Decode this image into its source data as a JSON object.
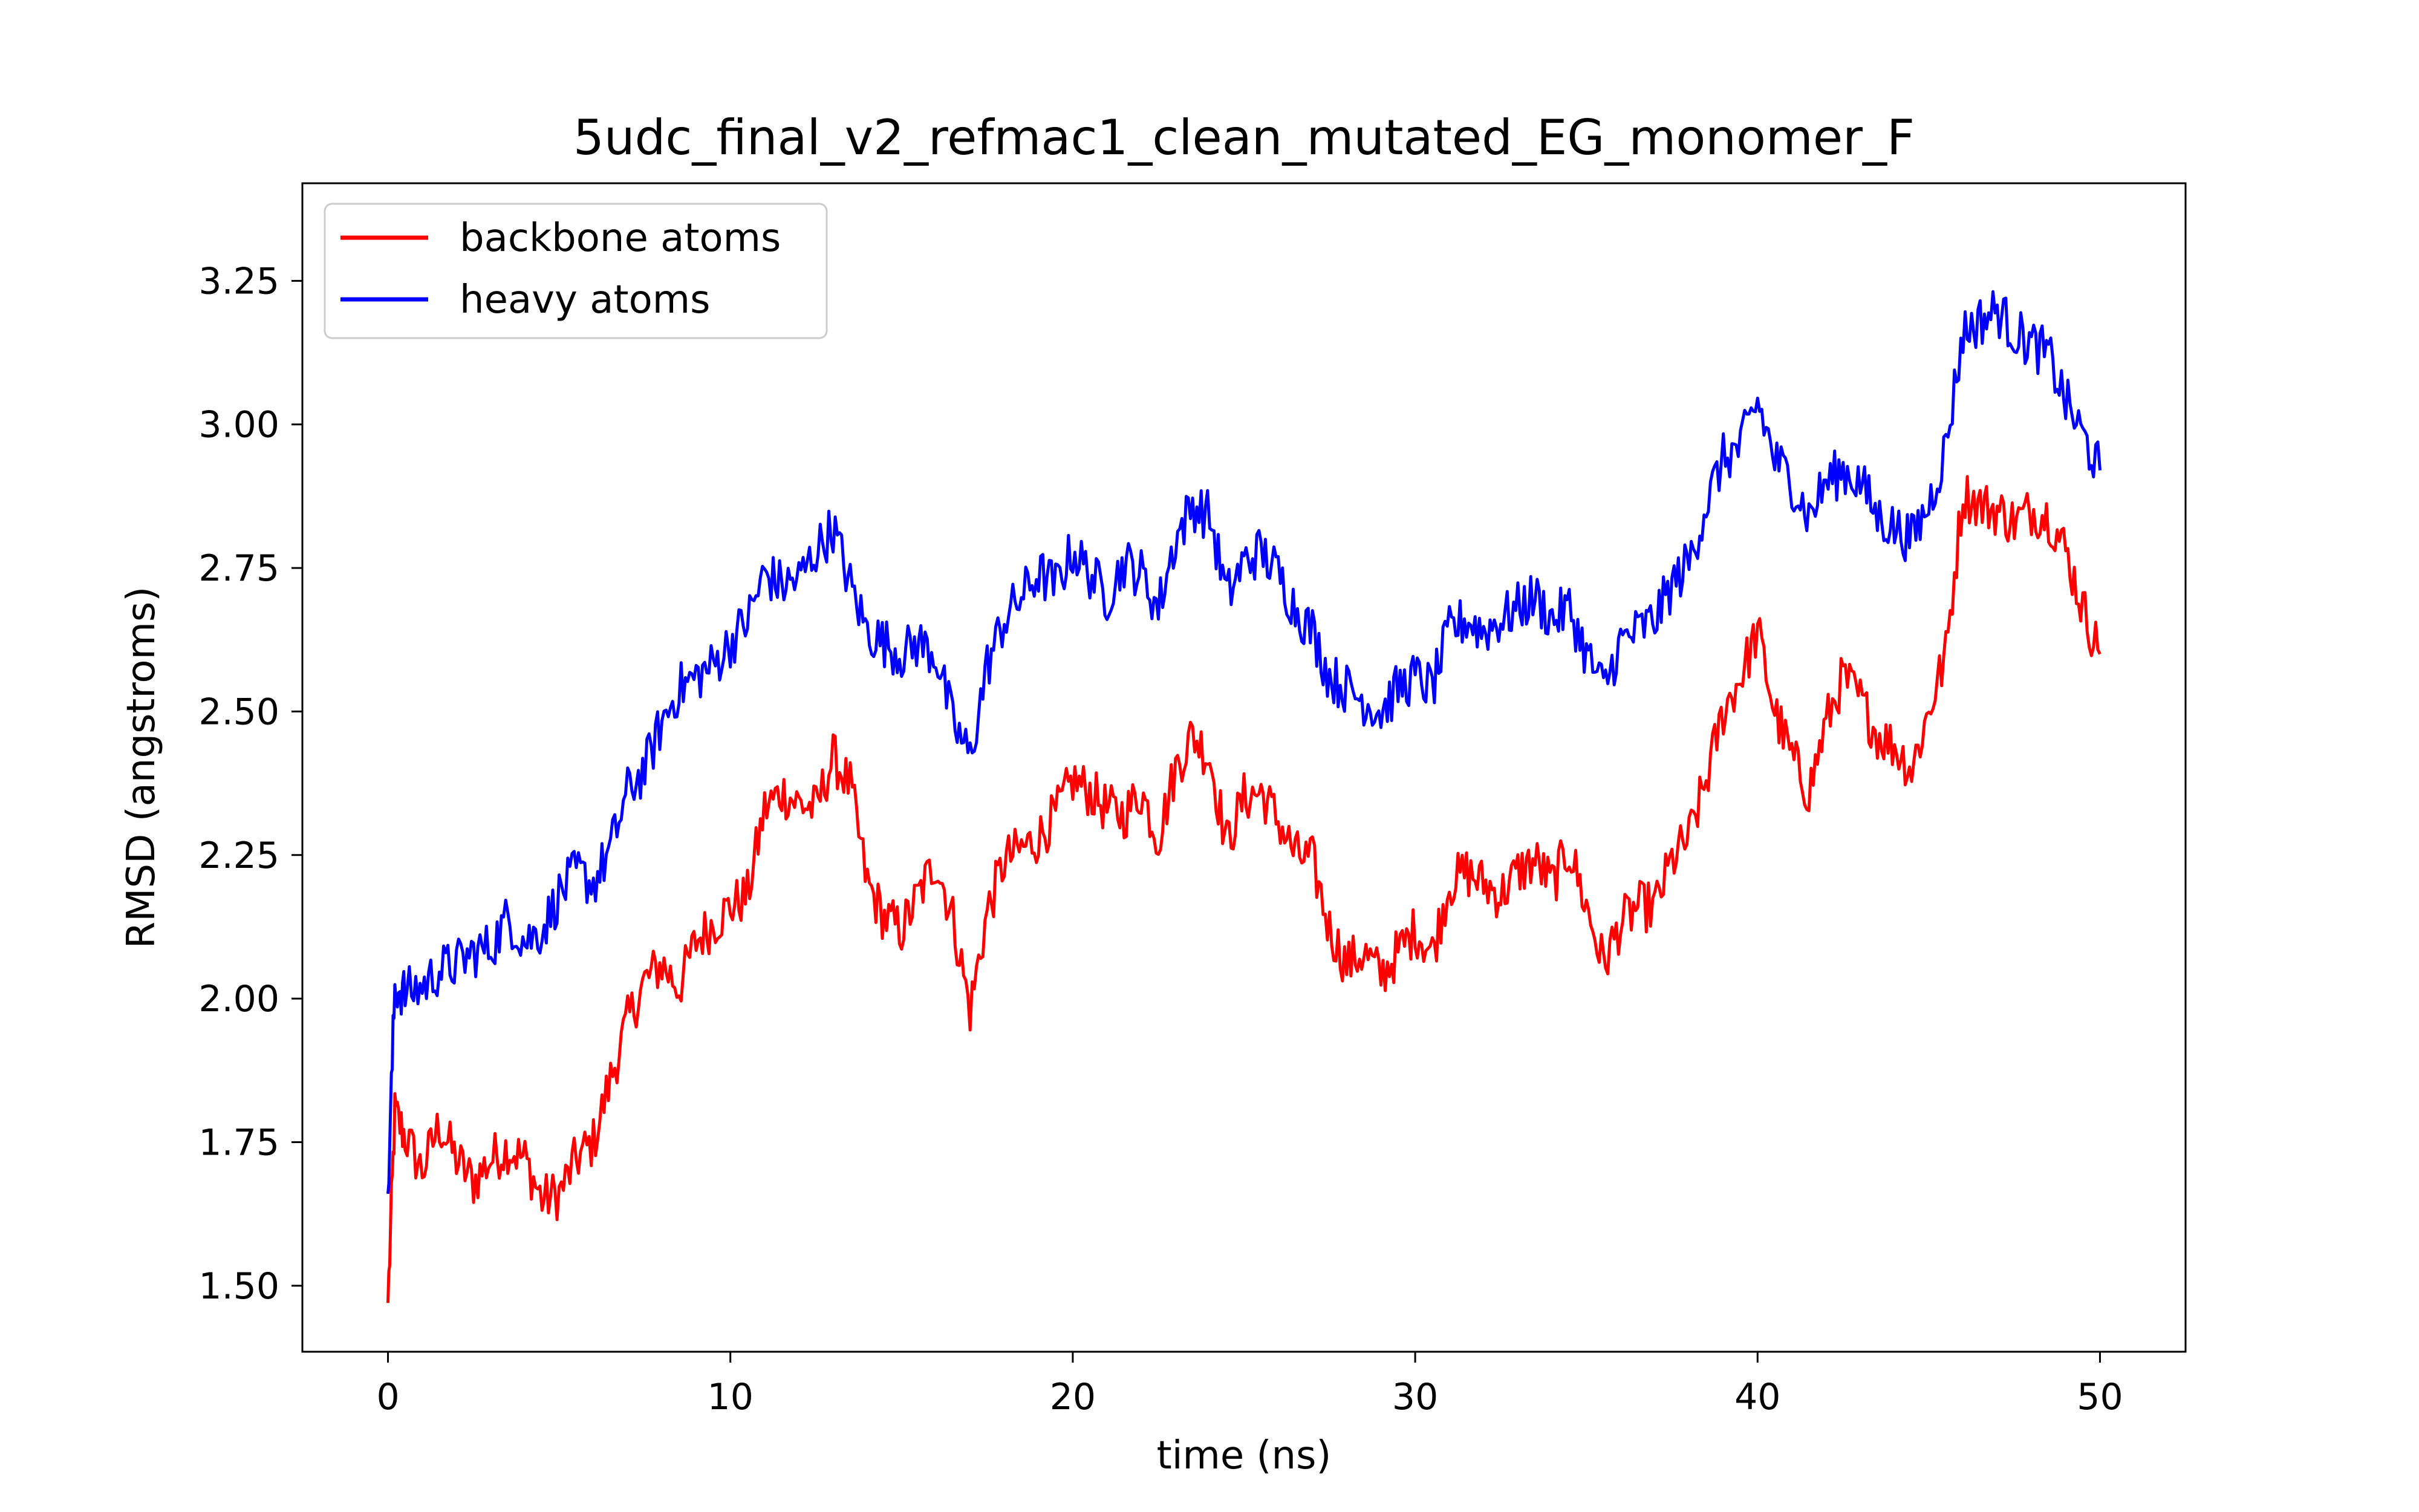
{
  "chart_data": {
    "type": "line",
    "title": "5udc_final_v2_refmac1_clean_mutated_EG_monomer_F",
    "xlabel": "time (ns)",
    "ylabel": "RMSD (angstroms)",
    "xlim": [
      -2.5,
      52.5
    ],
    "ylim": [
      1.385,
      3.42
    ],
    "x_ticks": [
      0,
      10,
      20,
      30,
      40,
      50
    ],
    "x_tick_labels": [
      "0",
      "10",
      "20",
      "30",
      "40",
      "50"
    ],
    "y_ticks": [
      1.5,
      1.75,
      2.0,
      2.25,
      2.5,
      2.75,
      3.0,
      3.25
    ],
    "y_tick_labels": [
      "1.50",
      "1.75",
      "2.00",
      "2.25",
      "2.50",
      "2.75",
      "3.00",
      "3.25"
    ],
    "grid": false,
    "legend_position": "top-left",
    "series": [
      {
        "name": "backbone atoms",
        "color": "#ff0000",
        "points": [
          [
            0.0,
            1.47
          ],
          [
            0.2,
            1.8
          ],
          [
            0.5,
            1.76
          ],
          [
            1.0,
            1.7
          ],
          [
            1.5,
            1.78
          ],
          [
            2.0,
            1.72
          ],
          [
            2.5,
            1.68
          ],
          [
            3.0,
            1.72
          ],
          [
            3.5,
            1.74
          ],
          [
            4.0,
            1.72
          ],
          [
            4.5,
            1.65
          ],
          [
            5.0,
            1.66
          ],
          [
            5.5,
            1.72
          ],
          [
            6.0,
            1.75
          ],
          [
            6.5,
            1.86
          ],
          [
            7.0,
            1.96
          ],
          [
            7.5,
            2.03
          ],
          [
            8.0,
            2.06
          ],
          [
            8.5,
            2.02
          ],
          [
            9.0,
            2.1
          ],
          [
            9.5,
            2.13
          ],
          [
            10.0,
            2.16
          ],
          [
            10.5,
            2.18
          ],
          [
            11.0,
            2.33
          ],
          [
            11.5,
            2.36
          ],
          [
            12.0,
            2.34
          ],
          [
            12.5,
            2.33
          ],
          [
            13.0,
            2.42
          ],
          [
            13.5,
            2.37
          ],
          [
            14.0,
            2.2
          ],
          [
            14.5,
            2.14
          ],
          [
            15.0,
            2.12
          ],
          [
            15.5,
            2.18
          ],
          [
            16.0,
            2.24
          ],
          [
            16.5,
            2.14
          ],
          [
            17.0,
            1.98
          ],
          [
            17.5,
            2.15
          ],
          [
            18.0,
            2.24
          ],
          [
            18.5,
            2.26
          ],
          [
            19.0,
            2.28
          ],
          [
            19.5,
            2.32
          ],
          [
            20.0,
            2.38
          ],
          [
            20.5,
            2.36
          ],
          [
            21.0,
            2.33
          ],
          [
            21.5,
            2.32
          ],
          [
            22.0,
            2.36
          ],
          [
            22.5,
            2.28
          ],
          [
            23.0,
            2.4
          ],
          [
            23.5,
            2.46
          ],
          [
            24.0,
            2.42
          ],
          [
            24.5,
            2.27
          ],
          [
            25.0,
            2.35
          ],
          [
            25.5,
            2.36
          ],
          [
            26.0,
            2.31
          ],
          [
            26.5,
            2.25
          ],
          [
            27.0,
            2.24
          ],
          [
            27.5,
            2.12
          ],
          [
            28.0,
            2.06
          ],
          [
            28.5,
            2.08
          ],
          [
            29.0,
            2.04
          ],
          [
            29.5,
            2.08
          ],
          [
            30.0,
            2.12
          ],
          [
            30.5,
            2.08
          ],
          [
            31.0,
            2.2
          ],
          [
            31.5,
            2.22
          ],
          [
            32.0,
            2.2
          ],
          [
            32.5,
            2.18
          ],
          [
            33.0,
            2.22
          ],
          [
            33.5,
            2.24
          ],
          [
            34.0,
            2.2
          ],
          [
            34.5,
            2.26
          ],
          [
            35.0,
            2.16
          ],
          [
            35.5,
            2.06
          ],
          [
            36.0,
            2.13
          ],
          [
            36.5,
            2.16
          ],
          [
            37.0,
            2.16
          ],
          [
            37.5,
            2.24
          ],
          [
            38.0,
            2.28
          ],
          [
            38.5,
            2.38
          ],
          [
            39.0,
            2.5
          ],
          [
            39.5,
            2.56
          ],
          [
            40.0,
            2.64
          ],
          [
            40.5,
            2.5
          ],
          [
            41.0,
            2.42
          ],
          [
            41.5,
            2.36
          ],
          [
            42.0,
            2.48
          ],
          [
            42.5,
            2.56
          ],
          [
            43.0,
            2.52
          ],
          [
            43.5,
            2.46
          ],
          [
            44.0,
            2.44
          ],
          [
            44.5,
            2.4
          ],
          [
            45.0,
            2.5
          ],
          [
            45.5,
            2.6
          ],
          [
            46.0,
            2.88
          ],
          [
            46.5,
            2.86
          ],
          [
            47.0,
            2.85
          ],
          [
            47.5,
            2.83
          ],
          [
            48.0,
            2.85
          ],
          [
            48.5,
            2.84
          ],
          [
            49.0,
            2.78
          ],
          [
            49.5,
            2.68
          ],
          [
            50.0,
            2.6
          ]
        ]
      },
      {
        "name": "heavy atoms",
        "color": "#0000ff",
        "points": [
          [
            0.0,
            1.66
          ],
          [
            0.2,
            2.02
          ],
          [
            0.5,
            2.01
          ],
          [
            1.0,
            2.02
          ],
          [
            1.5,
            2.05
          ],
          [
            2.0,
            2.06
          ],
          [
            2.5,
            2.08
          ],
          [
            3.0,
            2.09
          ],
          [
            3.5,
            2.14
          ],
          [
            4.0,
            2.1
          ],
          [
            4.5,
            2.12
          ],
          [
            5.0,
            2.18
          ],
          [
            5.5,
            2.22
          ],
          [
            6.0,
            2.2
          ],
          [
            6.5,
            2.26
          ],
          [
            7.0,
            2.36
          ],
          [
            7.5,
            2.4
          ],
          [
            8.0,
            2.48
          ],
          [
            8.5,
            2.54
          ],
          [
            9.0,
            2.56
          ],
          [
            9.5,
            2.58
          ],
          [
            10.0,
            2.62
          ],
          [
            10.5,
            2.66
          ],
          [
            11.0,
            2.74
          ],
          [
            11.5,
            2.72
          ],
          [
            12.0,
            2.73
          ],
          [
            12.5,
            2.78
          ],
          [
            13.0,
            2.82
          ],
          [
            13.5,
            2.72
          ],
          [
            14.0,
            2.64
          ],
          [
            14.5,
            2.62
          ],
          [
            15.0,
            2.6
          ],
          [
            15.5,
            2.62
          ],
          [
            16.0,
            2.6
          ],
          [
            16.5,
            2.48
          ],
          [
            17.0,
            2.42
          ],
          [
            17.5,
            2.58
          ],
          [
            18.0,
            2.66
          ],
          [
            18.5,
            2.7
          ],
          [
            19.0,
            2.74
          ],
          [
            19.5,
            2.72
          ],
          [
            20.0,
            2.78
          ],
          [
            20.5,
            2.74
          ],
          [
            21.0,
            2.7
          ],
          [
            21.5,
            2.76
          ],
          [
            22.0,
            2.74
          ],
          [
            22.5,
            2.68
          ],
          [
            23.0,
            2.8
          ],
          [
            23.5,
            2.86
          ],
          [
            24.0,
            2.84
          ],
          [
            24.5,
            2.7
          ],
          [
            25.0,
            2.76
          ],
          [
            25.5,
            2.78
          ],
          [
            26.0,
            2.74
          ],
          [
            26.5,
            2.68
          ],
          [
            27.0,
            2.64
          ],
          [
            27.5,
            2.56
          ],
          [
            28.0,
            2.54
          ],
          [
            28.5,
            2.52
          ],
          [
            29.0,
            2.5
          ],
          [
            29.5,
            2.54
          ],
          [
            30.0,
            2.56
          ],
          [
            30.5,
            2.54
          ],
          [
            31.0,
            2.64
          ],
          [
            31.5,
            2.66
          ],
          [
            32.0,
            2.64
          ],
          [
            32.5,
            2.66
          ],
          [
            33.0,
            2.68
          ],
          [
            33.5,
            2.7
          ],
          [
            34.0,
            2.66
          ],
          [
            34.5,
            2.68
          ],
          [
            35.0,
            2.6
          ],
          [
            35.5,
            2.54
          ],
          [
            36.0,
            2.62
          ],
          [
            36.5,
            2.64
          ],
          [
            37.0,
            2.66
          ],
          [
            37.5,
            2.72
          ],
          [
            38.0,
            2.76
          ],
          [
            38.5,
            2.86
          ],
          [
            39.0,
            2.94
          ],
          [
            39.5,
            2.96
          ],
          [
            40.0,
            3.04
          ],
          [
            40.5,
            2.94
          ],
          [
            41.0,
            2.9
          ],
          [
            41.5,
            2.84
          ],
          [
            42.0,
            2.9
          ],
          [
            42.5,
            2.92
          ],
          [
            43.0,
            2.9
          ],
          [
            43.5,
            2.84
          ],
          [
            44.0,
            2.82
          ],
          [
            44.5,
            2.8
          ],
          [
            45.0,
            2.86
          ],
          [
            45.5,
            2.96
          ],
          [
            46.0,
            3.16
          ],
          [
            46.5,
            3.18
          ],
          [
            47.0,
            3.2
          ],
          [
            47.5,
            3.16
          ],
          [
            48.0,
            3.14
          ],
          [
            48.5,
            3.12
          ],
          [
            49.0,
            3.04
          ],
          [
            49.5,
            2.98
          ],
          [
            50.0,
            2.92
          ]
        ]
      }
    ]
  }
}
